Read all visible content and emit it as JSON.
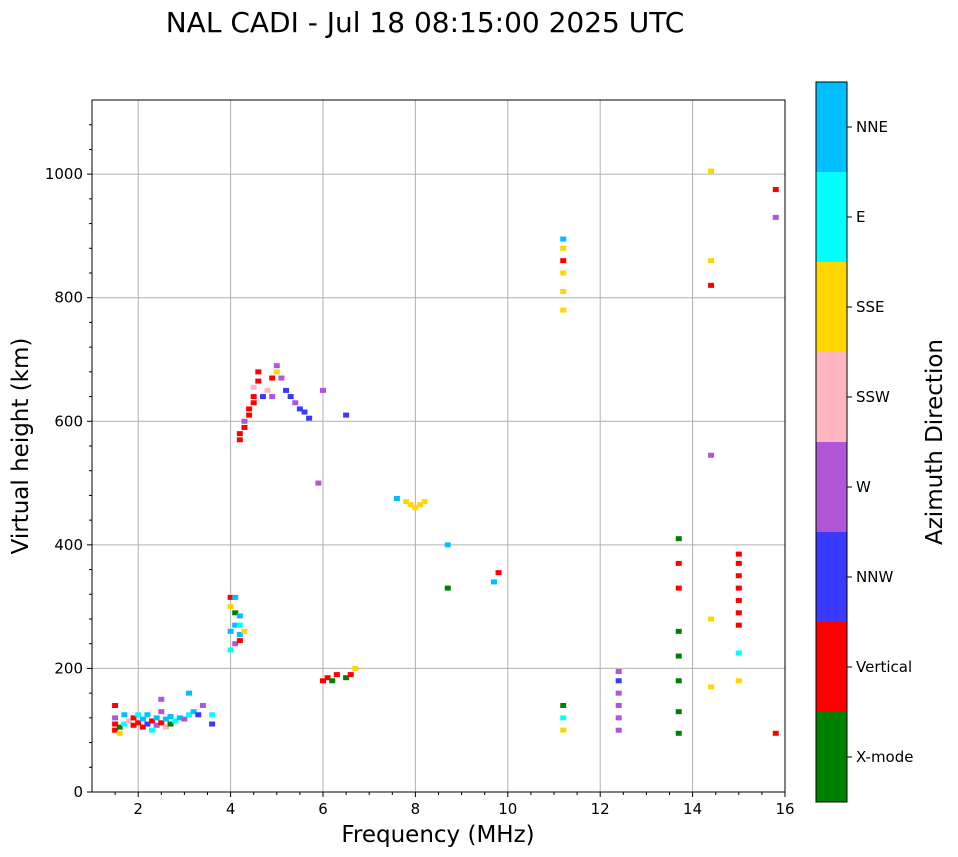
{
  "chart_data": {
    "type": "scatter",
    "title": "NAL CADI - Jul 18 08:15:00 2025 UTC",
    "xlabel": "Frequency (MHz)",
    "ylabel": "Virtual height (km)",
    "xlim": [
      1,
      16
    ],
    "ylim": [
      0,
      1120
    ],
    "xticks": [
      2,
      4,
      6,
      8,
      10,
      12,
      14,
      16
    ],
    "yticks": [
      0,
      200,
      400,
      600,
      800,
      1000
    ],
    "grid": true,
    "colorbar": {
      "label": "Azimuth Direction",
      "categories": [
        {
          "name": "X-mode",
          "color": "#008000"
        },
        {
          "name": "Vertical",
          "color": "#ff0000"
        },
        {
          "name": "NNW",
          "color": "#3a3aff"
        },
        {
          "name": "W",
          "color": "#b256d8"
        },
        {
          "name": "SSW",
          "color": "#ffb6c1"
        },
        {
          "name": "SSE",
          "color": "#ffd700"
        },
        {
          "name": "E",
          "color": "#00ffff"
        },
        {
          "name": "NNE",
          "color": "#00bfff"
        }
      ]
    },
    "points": [
      [
        "1.5",
        100,
        "Vertical"
      ],
      [
        "1.5",
        110,
        "Vertical"
      ],
      [
        "1.5",
        120,
        "W"
      ],
      [
        "1.5",
        140,
        "Vertical"
      ],
      [
        "1.6",
        95,
        "SSE"
      ],
      [
        "1.6",
        105,
        "X-mode"
      ],
      [
        "1.7",
        110,
        "E"
      ],
      [
        "1.7",
        125,
        "NNE"
      ],
      [
        "1.8",
        115,
        "SSW"
      ],
      [
        "1.9",
        108,
        "Vertical"
      ],
      [
        "1.9",
        120,
        "Vertical"
      ],
      [
        "2.0",
        112,
        "Vertical"
      ],
      [
        "2.0",
        125,
        "E"
      ],
      [
        "2.1",
        105,
        "Vertical"
      ],
      [
        "2.1",
        118,
        "NNE"
      ],
      [
        "2.2",
        110,
        "NNW"
      ],
      [
        "2.2",
        125,
        "NNE"
      ],
      [
        "2.3",
        100,
        "E"
      ],
      [
        "2.3",
        115,
        "Vertical"
      ],
      [
        "2.4",
        108,
        "W"
      ],
      [
        "2.4",
        120,
        "NNE"
      ],
      [
        "2.5",
        112,
        "Vertical"
      ],
      [
        "2.5",
        130,
        "W"
      ],
      [
        "2.5",
        150,
        "W"
      ],
      [
        "2.6",
        118,
        "NNE"
      ],
      [
        "2.6",
        105,
        "SSW"
      ],
      [
        "2.7",
        110,
        "X-mode"
      ],
      [
        "2.7",
        122,
        "NNE"
      ],
      [
        "2.8",
        115,
        "E"
      ],
      [
        "2.9",
        120,
        "NNE"
      ],
      [
        "3.0",
        118,
        "W"
      ],
      [
        "3.1",
        125,
        "E"
      ],
      [
        "3.1",
        160,
        "NNE"
      ],
      [
        "3.2",
        130,
        "NNE"
      ],
      [
        "3.3",
        125,
        "NNW"
      ],
      [
        "3.4",
        140,
        "W"
      ],
      [
        "3.6",
        125,
        "E"
      ],
      [
        "3.6",
        110,
        "NNW"
      ],
      [
        "4.0",
        230,
        "E"
      ],
      [
        "4.0",
        260,
        "NNE"
      ],
      [
        "4.0",
        300,
        "SSE"
      ],
      [
        "4.0",
        315,
        "Vertical"
      ],
      [
        "4.1",
        240,
        "W"
      ],
      [
        "4.1",
        270,
        "NNE"
      ],
      [
        "4.1",
        290,
        "X-mode"
      ],
      [
        "4.1",
        315,
        "NNE"
      ],
      [
        "4.2",
        245,
        "Vertical"
      ],
      [
        "4.2",
        255,
        "NNE"
      ],
      [
        "4.2",
        270,
        "E"
      ],
      [
        "4.2",
        285,
        "NNE"
      ],
      [
        "4.3",
        260,
        "SSE"
      ],
      [
        "4.2",
        570,
        "Vertical"
      ],
      [
        "4.2",
        580,
        "Vertical"
      ],
      [
        "4.3",
        590,
        "Vertical"
      ],
      [
        "4.3",
        600,
        "W"
      ],
      [
        "4.4",
        610,
        "Vertical"
      ],
      [
        "4.4",
        620,
        "Vertical"
      ],
      [
        "4.5",
        630,
        "Vertical"
      ],
      [
        "4.5",
        640,
        "Vertical"
      ],
      [
        "4.5",
        655,
        "SSW"
      ],
      [
        "4.6",
        665,
        "Vertical"
      ],
      [
        "4.6",
        680,
        "Vertical"
      ],
      [
        "4.7",
        640,
        "NNW"
      ],
      [
        "4.8",
        650,
        "SSW"
      ],
      [
        "4.9",
        640,
        "W"
      ],
      [
        "4.9",
        670,
        "Vertical"
      ],
      [
        "5.0",
        690,
        "W"
      ],
      [
        "5.0",
        680,
        "SSE"
      ],
      [
        "5.1",
        670,
        "W"
      ],
      [
        "5.2",
        650,
        "NNW"
      ],
      [
        "5.3",
        640,
        "NNW"
      ],
      [
        "5.4",
        630,
        "W"
      ],
      [
        "5.5",
        620,
        "NNW"
      ],
      [
        "5.6",
        615,
        "NNW"
      ],
      [
        "5.7",
        605,
        "NNW"
      ],
      [
        "5.9",
        500,
        "W"
      ],
      [
        "6.0",
        650,
        "W"
      ],
      [
        "6.5",
        610,
        "NNW"
      ],
      [
        "6.0",
        180,
        "Vertical"
      ],
      [
        "6.1",
        185,
        "Vertical"
      ],
      [
        "6.2",
        180,
        "X-mode"
      ],
      [
        "6.3",
        190,
        "Vertical"
      ],
      [
        "6.5",
        185,
        "X-mode"
      ],
      [
        "6.6",
        190,
        "Vertical"
      ],
      [
        "6.7",
        200,
        "SSE"
      ],
      [
        "7.8",
        470,
        "SSE"
      ],
      [
        "7.9",
        465,
        "SSE"
      ],
      [
        "8.0",
        460,
        "SSE"
      ],
      [
        "8.1",
        465,
        "SSE"
      ],
      [
        "8.2",
        470,
        "SSE"
      ],
      [
        "7.6",
        475,
        "NNE"
      ],
      [
        "8.7",
        400,
        "NNE"
      ],
      [
        "8.7",
        330,
        "X-mode"
      ],
      [
        "9.7",
        340,
        "NNE"
      ],
      [
        "9.8",
        355,
        "Vertical"
      ],
      [
        "11.2",
        100,
        "SSE"
      ],
      [
        "11.2",
        120,
        "E"
      ],
      [
        "11.2",
        140,
        "X-mode"
      ],
      [
        "11.2",
        780,
        "SSE"
      ],
      [
        "11.2",
        810,
        "SSE"
      ],
      [
        "11.2",
        840,
        "SSE"
      ],
      [
        "11.2",
        860,
        "Vertical"
      ],
      [
        "11.2",
        880,
        "SSE"
      ],
      [
        "11.2",
        895,
        "NNE"
      ],
      [
        "12.4",
        100,
        "W"
      ],
      [
        "12.4",
        120,
        "W"
      ],
      [
        "12.4",
        140,
        "W"
      ],
      [
        "12.4",
        160,
        "W"
      ],
      [
        "12.4",
        180,
        "NNW"
      ],
      [
        "12.4",
        195,
        "W"
      ],
      [
        "13.7",
        95,
        "X-mode"
      ],
      [
        "13.7",
        130,
        "X-mode"
      ],
      [
        "13.7",
        180,
        "X-mode"
      ],
      [
        "13.7",
        220,
        "X-mode"
      ],
      [
        "13.7",
        260,
        "X-mode"
      ],
      [
        "13.7",
        330,
        "Vertical"
      ],
      [
        "13.7",
        370,
        "Vertical"
      ],
      [
        "13.7",
        410,
        "X-mode"
      ],
      [
        "14.4",
        280,
        "SSE"
      ],
      [
        "14.4",
        170,
        "SSE"
      ],
      [
        "14.4",
        545,
        "W"
      ],
      [
        "14.4",
        820,
        "Vertical"
      ],
      [
        "14.4",
        860,
        "SSE"
      ],
      [
        "14.4",
        1005,
        "SSE"
      ],
      [
        "15.0",
        270,
        "Vertical"
      ],
      [
        "15.0",
        290,
        "Vertical"
      ],
      [
        "15.0",
        310,
        "Vertical"
      ],
      [
        "15.0",
        330,
        "Vertical"
      ],
      [
        "15.0",
        350,
        "Vertical"
      ],
      [
        "15.0",
        370,
        "Vertical"
      ],
      [
        "15.0",
        385,
        "Vertical"
      ],
      [
        "15.0",
        180,
        "SSE"
      ],
      [
        "15.0",
        225,
        "E"
      ],
      [
        "15.8",
        975,
        "Vertical"
      ],
      [
        "15.8",
        930,
        "W"
      ],
      [
        "15.8",
        95,
        "Vertical"
      ]
    ]
  }
}
